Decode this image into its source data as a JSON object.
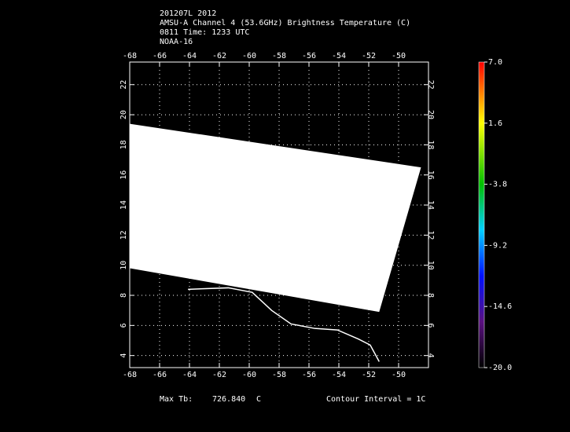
{
  "chart_data": {
    "type": "map",
    "title_lines": [
      "201207L 2012",
      "AMSU-A Channel 4 (53.6GHz) Brightness Temperature (C)",
      "0811 Time: 1233 UTC",
      "NOAA-16"
    ],
    "xlim": [
      -68,
      -48
    ],
    "ylim": [
      3.2,
      23.5
    ],
    "xticks": [
      -68,
      -66,
      -64,
      -62,
      -60,
      -58,
      -56,
      -54,
      -52,
      -50
    ],
    "yticks": [
      4,
      6,
      8,
      10,
      12,
      14,
      16,
      18,
      20,
      22
    ],
    "grid": true,
    "swath": {
      "color": "#ffffff",
      "lon": [
        -68,
        -48.5,
        -51.3,
        -68
      ],
      "lat": [
        19.4,
        16.5,
        6.9,
        9.8
      ]
    },
    "coastline": {
      "color": "#ffffff",
      "lon": [
        -64.1,
        -61.4,
        -59.8,
        -58.5,
        -57.2,
        -55.6,
        -54.1,
        -52.7,
        -51.9,
        -51.3
      ],
      "lat": [
        8.4,
        8.5,
        8.2,
        7.0,
        6.1,
        5.8,
        5.7,
        5.1,
        4.7,
        3.6
      ]
    },
    "colorbar": {
      "lim": [
        -20,
        7
      ],
      "ticks": [
        {
          "value": 7,
          "label": "7.0"
        },
        1.6,
        -3.8,
        -9.2,
        -14.6,
        {
          "value": -20,
          "label": "-20.0"
        }
      ]
    },
    "footer": {
      "max_label": "Max Tb:",
      "max_value": "726.840",
      "unit": "C",
      "contour": "Contour Interval = 1C"
    }
  }
}
